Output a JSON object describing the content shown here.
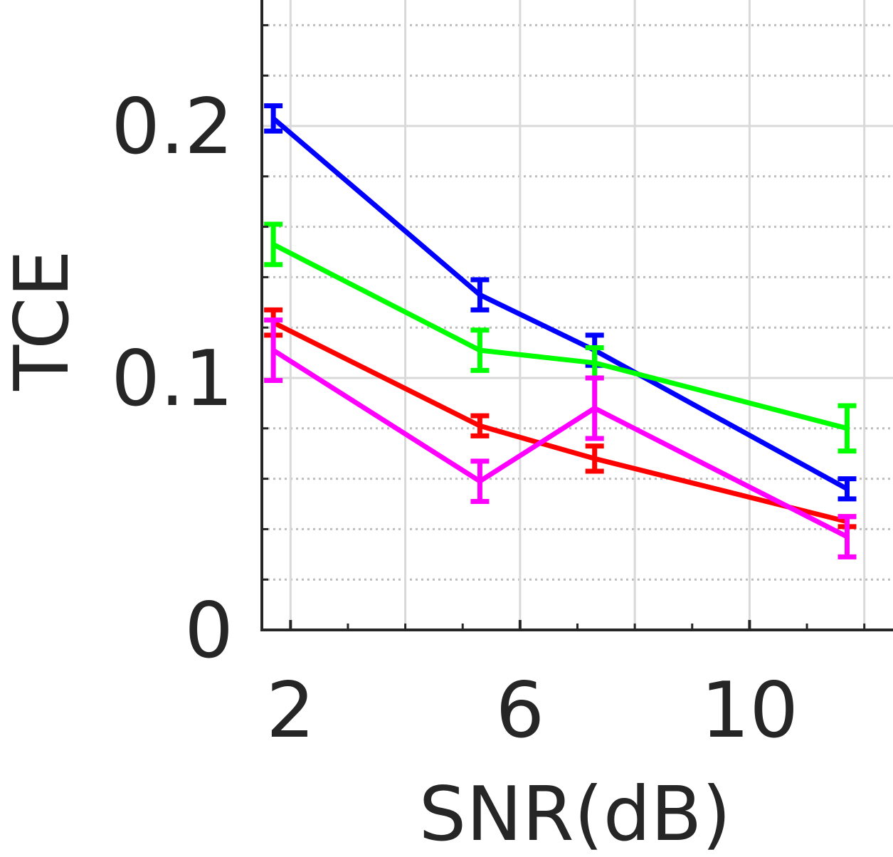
{
  "chart_data": {
    "type": "line",
    "title": "",
    "xlabel": "SNR(dB)",
    "ylabel": "TCE",
    "xlim": [
      1.5,
      12.5
    ],
    "ylim": [
      0,
      0.25
    ],
    "xticks": [
      2,
      6,
      10
    ],
    "xtick_labels": [
      "2",
      "6",
      "10"
    ],
    "yticks": [
      0,
      0.1,
      0.2
    ],
    "ytick_labels": [
      "0",
      "0.1",
      "0.2"
    ],
    "grid": "on",
    "minor_grid": "on",
    "error_bars": true,
    "series": [
      {
        "color": "#0000ff",
        "x": [
          1.7,
          5.3,
          7.3,
          11.7
        ],
        "y": [
          0.203,
          0.133,
          0.111,
          0.056
        ],
        "err": [
          0.005,
          0.006,
          0.006,
          0.004
        ]
      },
      {
        "color": "#00ff00",
        "x": [
          1.7,
          5.3,
          7.3,
          11.7
        ],
        "y": [
          0.153,
          0.111,
          0.106,
          0.08
        ],
        "err": [
          0.008,
          0.008,
          0.006,
          0.009
        ]
      },
      {
        "color": "#ff0000",
        "x": [
          1.7,
          5.3,
          7.3,
          11.7
        ],
        "y": [
          0.122,
          0.081,
          0.068,
          0.043
        ],
        "err": [
          0.005,
          0.004,
          0.005,
          0.002
        ]
      },
      {
        "color": "#ff00ff",
        "x": [
          1.7,
          5.3,
          7.3,
          11.7
        ],
        "y": [
          0.111,
          0.059,
          0.088,
          0.037
        ],
        "err": [
          0.012,
          0.008,
          0.012,
          0.008
        ]
      }
    ]
  }
}
